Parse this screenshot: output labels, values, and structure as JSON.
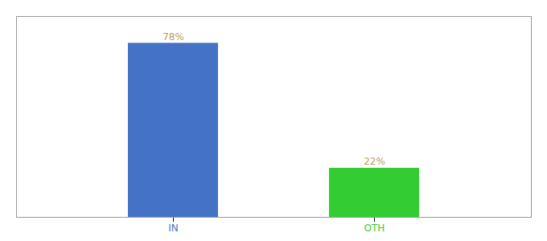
{
  "chart_data": {
    "type": "bar",
    "categories": [
      "IN",
      "OTH"
    ],
    "values": [
      78,
      22
    ],
    "value_labels": [
      "78%",
      "22%"
    ],
    "colors": [
      "#4472c4",
      "#33cc33"
    ],
    "ylim": [
      0,
      90
    ],
    "grid": false,
    "data_labels": true,
    "tick_labels": "x"
  }
}
